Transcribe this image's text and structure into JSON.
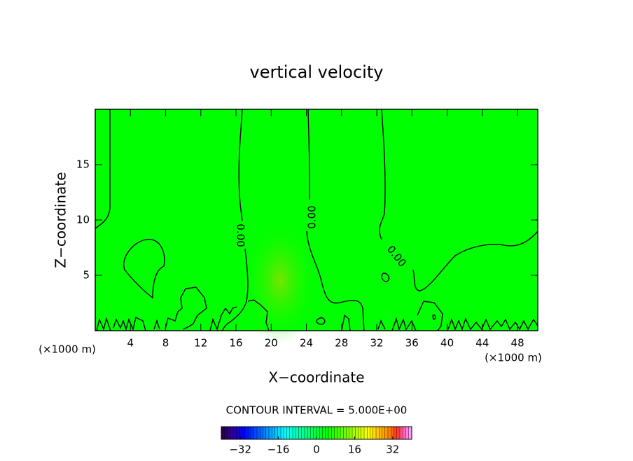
{
  "chart_data": {
    "type": "contour",
    "title": "vertical velocity",
    "x_label": "X−coordinate",
    "y_label": "Z−coordinate",
    "x_unit": "(×1000 m)",
    "y_unit": "(×1000 m)",
    "xlim": [
      0,
      50.3
    ],
    "xticks": [
      4,
      8,
      12,
      16,
      20,
      24,
      28,
      32,
      36,
      40,
      44,
      48
    ],
    "ylim": [
      0,
      20
    ],
    "yticks": [
      5,
      10,
      15
    ],
    "field_color": "#00ff00",
    "contour_level": {
      "value": 0,
      "label": "0.00"
    },
    "contour_interval_text": "CONTOUR INTERVAL = 5.000E+00",
    "colorbar": {
      "clim": [
        -40,
        40
      ],
      "ticks": [
        {
          "value": -32,
          "label": "−32"
        },
        {
          "value": -16,
          "label": "−16"
        },
        0,
        16,
        32
      ]
    }
  }
}
